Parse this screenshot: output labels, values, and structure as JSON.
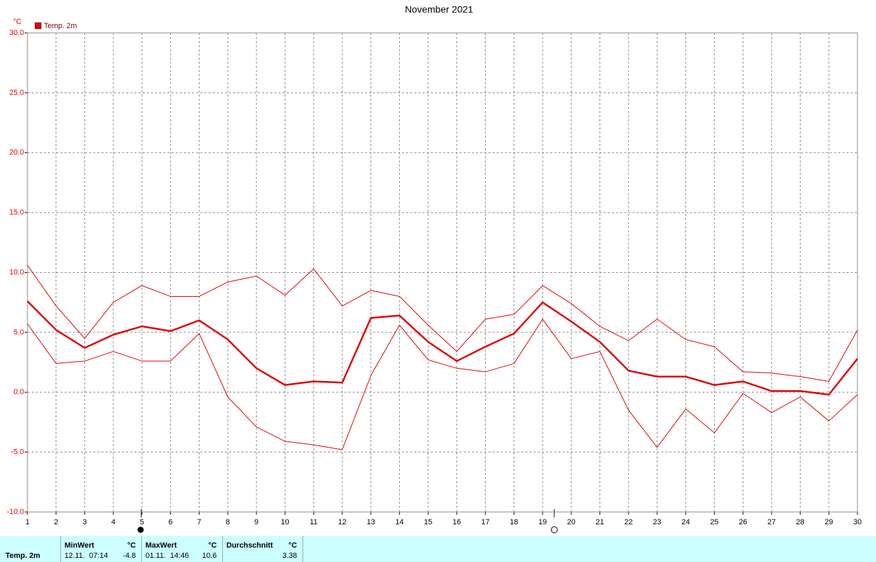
{
  "chart_data": {
    "type": "line",
    "title": "November 2021",
    "unit": "°C",
    "x": [
      1,
      2,
      3,
      4,
      5,
      6,
      7,
      8,
      9,
      10,
      11,
      12,
      13,
      14,
      15,
      16,
      17,
      18,
      19,
      20,
      21,
      22,
      23,
      24,
      25,
      26,
      27,
      28,
      29,
      30
    ],
    "xlim": [
      1,
      30
    ],
    "xticks": [
      1,
      2,
      3,
      4,
      5,
      6,
      7,
      8,
      9,
      10,
      11,
      12,
      13,
      14,
      15,
      16,
      17,
      18,
      19,
      20,
      21,
      22,
      23,
      24,
      25,
      26,
      27,
      28,
      29,
      30
    ],
    "ylim": [
      -10,
      30
    ],
    "yticks": [
      {
        "value": -10,
        "label": "-10.0"
      },
      {
        "value": -5,
        "label": "-5.0"
      },
      {
        "value": 0,
        "label": "0.0"
      },
      {
        "value": 5,
        "label": "5.0"
      },
      {
        "value": 10,
        "label": "10.0"
      },
      {
        "value": 15,
        "label": "15.0"
      },
      {
        "value": 20,
        "label": "20.0"
      },
      {
        "value": 25,
        "label": "25.0"
      },
      {
        "value": 30,
        "label": "30.0"
      }
    ],
    "grid": true,
    "series": [
      {
        "name": "Temp. 2m",
        "color": "#e00000",
        "width": 2.5,
        "values": [
          7.6,
          5.2,
          3.7,
          4.8,
          5.5,
          5.1,
          6.0,
          4.4,
          2.0,
          0.6,
          0.9,
          0.8,
          6.2,
          6.4,
          4.2,
          2.6,
          3.8,
          4.9,
          7.5,
          5.9,
          4.2,
          1.8,
          1.3,
          1.3,
          0.6,
          0.9,
          0.1,
          0.1,
          -0.2,
          2.8
        ]
      },
      {
        "color": "#e00000",
        "width": 1,
        "values": [
          10.6,
          7.2,
          4.5,
          7.5,
          8.9,
          8.0,
          8.0,
          9.2,
          9.7,
          8.1,
          10.3,
          7.2,
          8.5,
          8.0,
          5.6,
          3.4,
          6.1,
          6.5,
          8.9,
          7.4,
          5.5,
          4.3,
          6.1,
          4.4,
          3.8,
          1.7,
          1.6,
          1.3,
          0.9,
          5.2
        ]
      },
      {
        "color": "#e00000",
        "width": 1,
        "values": [
          5.7,
          2.4,
          2.6,
          3.4,
          2.6,
          2.6,
          4.9,
          -0.4,
          -2.9,
          -4.1,
          -4.4,
          -4.8,
          1.4,
          5.6,
          2.7,
          2.0,
          1.7,
          2.4,
          6.1,
          2.8,
          3.4,
          -1.5,
          -4.6,
          -1.4,
          -3.4,
          -0.1,
          -1.7,
          -0.4,
          -2.4,
          -0.2
        ]
      }
    ]
  },
  "table": {
    "row_label": "Temp. 2m",
    "columns": [
      {
        "header": "MinWert",
        "unit": "°C",
        "time": "12.11.  07:14",
        "value": -4.8
      },
      {
        "header": "MaxWert",
        "unit": "°C",
        "time": "01.11.  14:46",
        "value": 10.6
      },
      {
        "header": "Durchschnitt",
        "unit": "°C",
        "value": 3.38
      }
    ]
  }
}
